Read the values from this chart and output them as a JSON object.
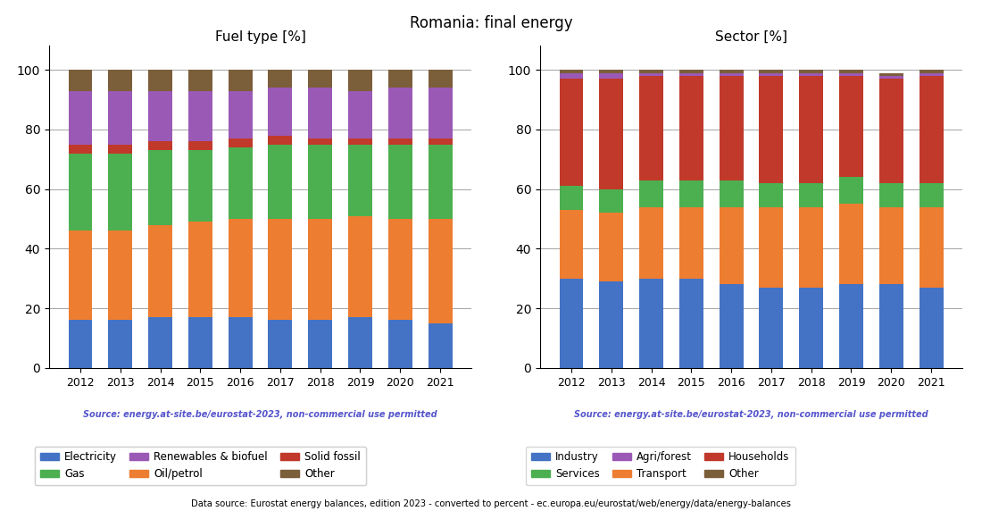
{
  "title": "Romania: final energy",
  "years": [
    2012,
    2013,
    2014,
    2015,
    2016,
    2017,
    2018,
    2019,
    2020,
    2021
  ],
  "fuel_title": "Fuel type [%]",
  "fuel_electricity": [
    16,
    16,
    17,
    17,
    17,
    16,
    16,
    17,
    16,
    15
  ],
  "fuel_oil": [
    30,
    30,
    31,
    32,
    33,
    34,
    34,
    34,
    34,
    35
  ],
  "fuel_gas": [
    26,
    26,
    25,
    24,
    24,
    25,
    25,
    24,
    25,
    25
  ],
  "fuel_solid": [
    3,
    3,
    3,
    3,
    3,
    3,
    2,
    2,
    2,
    2
  ],
  "fuel_renewables": [
    18,
    18,
    17,
    17,
    16,
    16,
    17,
    16,
    17,
    17
  ],
  "fuel_other": [
    7,
    7,
    7,
    7,
    7,
    6,
    6,
    7,
    6,
    6
  ],
  "sector_title": "Sector [%]",
  "sector_industry": [
    30,
    29,
    30,
    30,
    28,
    27,
    27,
    28,
    28,
    27
  ],
  "sector_transport": [
    23,
    23,
    24,
    24,
    26,
    27,
    27,
    27,
    26,
    27
  ],
  "sector_services": [
    8,
    8,
    9,
    9,
    9,
    8,
    8,
    9,
    8,
    8
  ],
  "sector_households": [
    36,
    37,
    35,
    35,
    35,
    36,
    36,
    34,
    35,
    36
  ],
  "sector_agriforest": [
    2,
    2,
    1,
    1,
    1,
    1,
    1,
    1,
    1,
    1
  ],
  "sector_other": [
    1,
    1,
    1,
    1,
    1,
    1,
    1,
    1,
    1,
    1
  ],
  "color_electricity": "#4472c4",
  "color_oil": "#ed7d31",
  "color_gas": "#4caf50",
  "color_solid": "#c0392b",
  "color_renewables": "#9b59b6",
  "color_other_fuel": "#7b5e3a",
  "color_industry": "#4472c4",
  "color_transport": "#ed7d31",
  "color_services": "#4caf50",
  "color_households": "#c0392b",
  "color_agriforest": "#9b59b6",
  "color_other_sector": "#7b5e3a",
  "source_text": "Source: energy.at-site.be/eurostat-2023, non-commercial use permitted",
  "footer_text": "Data source: Eurostat energy balances, edition 2023 - converted to percent - ec.europa.eu/eurostat/web/energy/data/energy-balances"
}
